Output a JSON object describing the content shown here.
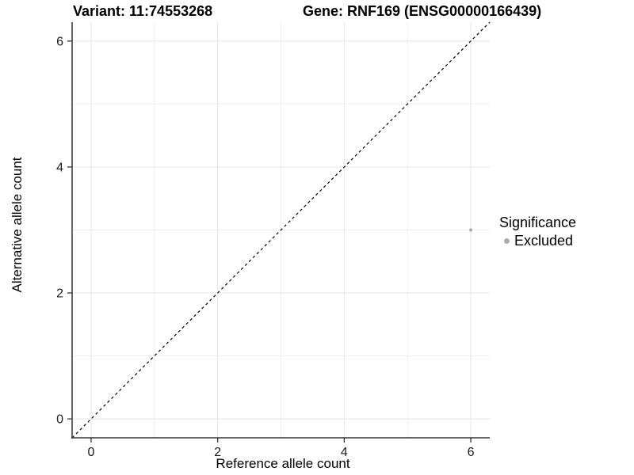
{
  "header": {
    "variant_title": "Variant: 11:74553268",
    "gene_title": "Gene: RNF169 (ENSG00000166439)"
  },
  "axes": {
    "x_label": "Reference allele count",
    "y_label": "Alternative allele count"
  },
  "legend": {
    "title": "Significance",
    "items": [
      {
        "label": "Excluded",
        "marker": "circle",
        "color": "#ababab"
      }
    ]
  },
  "chart_data": {
    "type": "scatter",
    "title": "Variant: 11:74553268 | Gene: RNF169 (ENSG00000166439)",
    "xlabel": "Reference allele count",
    "ylabel": "Alternative allele count",
    "xlim": [
      -0.3,
      6.3
    ],
    "ylim": [
      -0.3,
      6.3
    ],
    "x_ticks": [
      0,
      2,
      4,
      6
    ],
    "y_ticks": [
      0,
      2,
      4,
      6
    ],
    "x_minor_ticks": [
      1,
      3,
      5
    ],
    "y_minor_ticks": [
      1,
      3,
      5
    ],
    "grid": "major+minor",
    "legend_position": "right",
    "series": [
      {
        "name": "Excluded",
        "color": "#ababab",
        "points": [
          {
            "x": 6,
            "y": 3
          }
        ]
      }
    ],
    "reference_line": {
      "equation": "y = x",
      "style": "dashed",
      "color": "#000000"
    }
  },
  "style": {
    "background": "#ffffff",
    "grid_major_color": "#e5e5e5",
    "grid_minor_color": "#f0f0f0",
    "axis_line_color": "#333333",
    "tick_mark_color": "#333333",
    "tick_label_color": "#1a1a1a",
    "point_color": "#ababab",
    "reference_line_color": "#000000"
  }
}
